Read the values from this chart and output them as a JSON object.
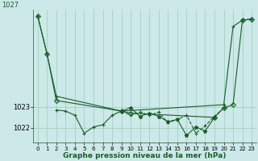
{
  "background_color": "#cce8e8",
  "grid_color": "#99ccbb",
  "line_color": "#1a5c2a",
  "xlabel": "Graphe pression niveau de la mer (hPa)",
  "xlim": [
    -0.5,
    23.5
  ],
  "ylim": [
    1021.3,
    1027.6
  ],
  "yticks": [
    1022,
    1023
  ],
  "ytick_labels": [
    "1022",
    "1023"
  ],
  "ytop_label": "1027",
  "xticks": [
    0,
    1,
    2,
    3,
    4,
    5,
    6,
    7,
    8,
    9,
    10,
    11,
    12,
    13,
    14,
    15,
    16,
    17,
    18,
    19,
    20,
    21,
    22,
    23
  ],
  "series": [
    {
      "x": [
        0,
        1,
        2,
        9,
        20,
        21,
        22,
        23
      ],
      "y": [
        1027.3,
        1025.5,
        1023.5,
        1022.8,
        1023.1,
        1026.8,
        1027.1,
        1027.15
      ],
      "linestyle": "-",
      "marker": "+"
    },
    {
      "x": [
        0,
        1,
        2,
        9,
        10,
        19,
        20,
        21,
        22,
        23
      ],
      "y": [
        1027.3,
        1025.5,
        1023.3,
        1022.8,
        1022.7,
        1022.5,
        1022.95,
        1023.1,
        1027.1,
        1027.15
      ],
      "linestyle": "-",
      "marker": "D"
    },
    {
      "x": [
        2,
        3,
        4,
        5,
        6,
        7,
        8,
        9
      ],
      "y": [
        1022.85,
        1022.8,
        1022.6,
        1021.75,
        1022.05,
        1022.15,
        1022.6,
        1022.8
      ],
      "linestyle": "-",
      "marker": "+"
    },
    {
      "x": [
        9,
        10,
        11,
        12,
        13,
        14,
        15,
        16,
        17,
        18,
        19
      ],
      "y": [
        1022.8,
        1022.95,
        1022.55,
        1022.7,
        1022.55,
        1022.3,
        1022.4,
        1021.65,
        1022.05,
        1021.85,
        1022.5
      ],
      "linestyle": "-",
      "marker": "*"
    },
    {
      "x": [
        9,
        10,
        11,
        12,
        13,
        14,
        15,
        16,
        17,
        18,
        19,
        20
      ],
      "y": [
        1022.8,
        1022.6,
        1022.75,
        1022.6,
        1022.75,
        1022.25,
        1022.4,
        1022.6,
        1021.75,
        1022.1,
        1022.55,
        1022.95
      ],
      "linestyle": "--",
      "marker": "+"
    }
  ]
}
